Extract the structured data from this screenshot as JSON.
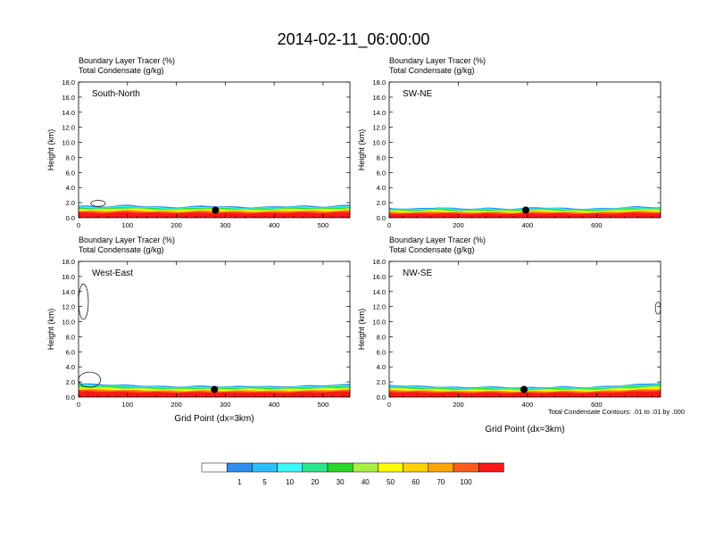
{
  "title": "2014-02-11_06:00:00",
  "panel_titles": {
    "tracer": "Boundary Layer Tracer   (%)",
    "condensate": "Total Condensate   (g/kg)"
  },
  "footnote": "Total Condensate Contours: .01 to .01 by .000",
  "colorbar": {
    "colors": [
      "#ffffff",
      "#2d8fef",
      "#28bfff",
      "#3af8f8",
      "#28e88c",
      "#28d828",
      "#a8f040",
      "#ffff00",
      "#ffd200",
      "#ffa600",
      "#ff5c1c",
      "#ff1818"
    ],
    "labels": [
      "1",
      "5",
      "10",
      "20",
      "30",
      "40",
      "50",
      "60",
      "70",
      "100"
    ]
  },
  "chart_data": [
    {
      "type": "heatmap",
      "panel": "South-North",
      "xlabel": "",
      "ylabel": "Height (km)",
      "xlim": [
        0,
        555
      ],
      "ylim": [
        0,
        18
      ],
      "xticks": [
        "0",
        "100",
        "200",
        "300",
        "400",
        "500"
      ],
      "xtick_values": [
        0,
        100,
        200,
        300,
        400,
        500
      ],
      "yticks": [
        "0.0",
        "2.0",
        "4.0",
        "6.0",
        "8.0",
        "10.0",
        "12.0",
        "14.0",
        "16.0",
        "18.0"
      ],
      "boundary_layer_top_km": [
        1.6,
        1.5,
        1.7,
        1.5,
        1.4,
        1.6,
        1.5,
        1.4,
        1.5,
        1.6,
        1.5,
        1.7
      ],
      "marker": {
        "x": 280,
        "y": 1.0
      },
      "condensate_contours": [
        {
          "x": [
            25,
            55
          ],
          "y": [
            1.5,
            2.3
          ]
        }
      ]
    },
    {
      "type": "heatmap",
      "panel": "SW-NE",
      "xlabel": "",
      "ylabel": "Height (km)",
      "xlim": [
        0,
        785
      ],
      "ylim": [
        0,
        18
      ],
      "xticks": [
        "0",
        "200",
        "400",
        "600"
      ],
      "xtick_values": [
        0,
        200,
        400,
        600
      ],
      "yticks": [
        "0.0",
        "2.0",
        "4.0",
        "6.0",
        "8.0",
        "10.0",
        "12.0",
        "14.0",
        "16.0",
        "18.0"
      ],
      "boundary_layer_top_km": [
        1.3,
        1.2,
        1.4,
        1.2,
        1.3,
        1.2,
        1.4,
        1.3,
        1.2,
        1.3,
        1.5,
        1.4
      ],
      "marker": {
        "x": 395,
        "y": 1.0
      },
      "condensate_contours": []
    },
    {
      "type": "heatmap",
      "panel": "West-East",
      "xlabel": "Grid Point (dx=3km)",
      "ylabel": "Height (km)",
      "xlim": [
        0,
        555
      ],
      "ylim": [
        0,
        18
      ],
      "xticks": [
        "0",
        "100",
        "200",
        "300",
        "400",
        "500"
      ],
      "xtick_values": [
        0,
        100,
        200,
        300,
        400,
        500
      ],
      "yticks": [
        "0.0",
        "2.0",
        "4.0",
        "6.0",
        "8.0",
        "10.0",
        "12.0",
        "14.0",
        "16.0",
        "18.0"
      ],
      "boundary_layer_top_km": [
        1.8,
        1.7,
        1.6,
        1.5,
        1.4,
        1.5,
        1.4,
        1.5,
        1.4,
        1.5,
        1.6,
        1.7
      ],
      "marker": {
        "x": 278,
        "y": 1.0
      },
      "condensate_contours": [
        {
          "x": [
            0,
            20
          ],
          "y": [
            10.3,
            15.0
          ]
        },
        {
          "x": [
            0,
            45
          ],
          "y": [
            1.3,
            3.3
          ]
        }
      ]
    },
    {
      "type": "heatmap",
      "panel": "NW-SE",
      "xlabel": "Grid Point (dx=3km)",
      "ylabel": "Height (km)",
      "xlim": [
        0,
        785
      ],
      "ylim": [
        0,
        18
      ],
      "xticks": [
        "0",
        "200",
        "400",
        "600"
      ],
      "xtick_values": [
        0,
        200,
        400,
        600
      ],
      "yticks": [
        "0.0",
        "2.0",
        "4.0",
        "6.0",
        "8.0",
        "10.0",
        "12.0",
        "14.0",
        "16.0",
        "18.0"
      ],
      "boundary_layer_top_km": [
        1.6,
        1.5,
        1.4,
        1.3,
        1.4,
        1.3,
        1.3,
        1.4,
        1.3,
        1.5,
        1.7,
        1.9
      ],
      "marker": {
        "x": 390,
        "y": 1.0
      },
      "condensate_contours": [
        {
          "x": [
            770,
            785
          ],
          "y": [
            11.0,
            12.6
          ]
        }
      ]
    }
  ]
}
